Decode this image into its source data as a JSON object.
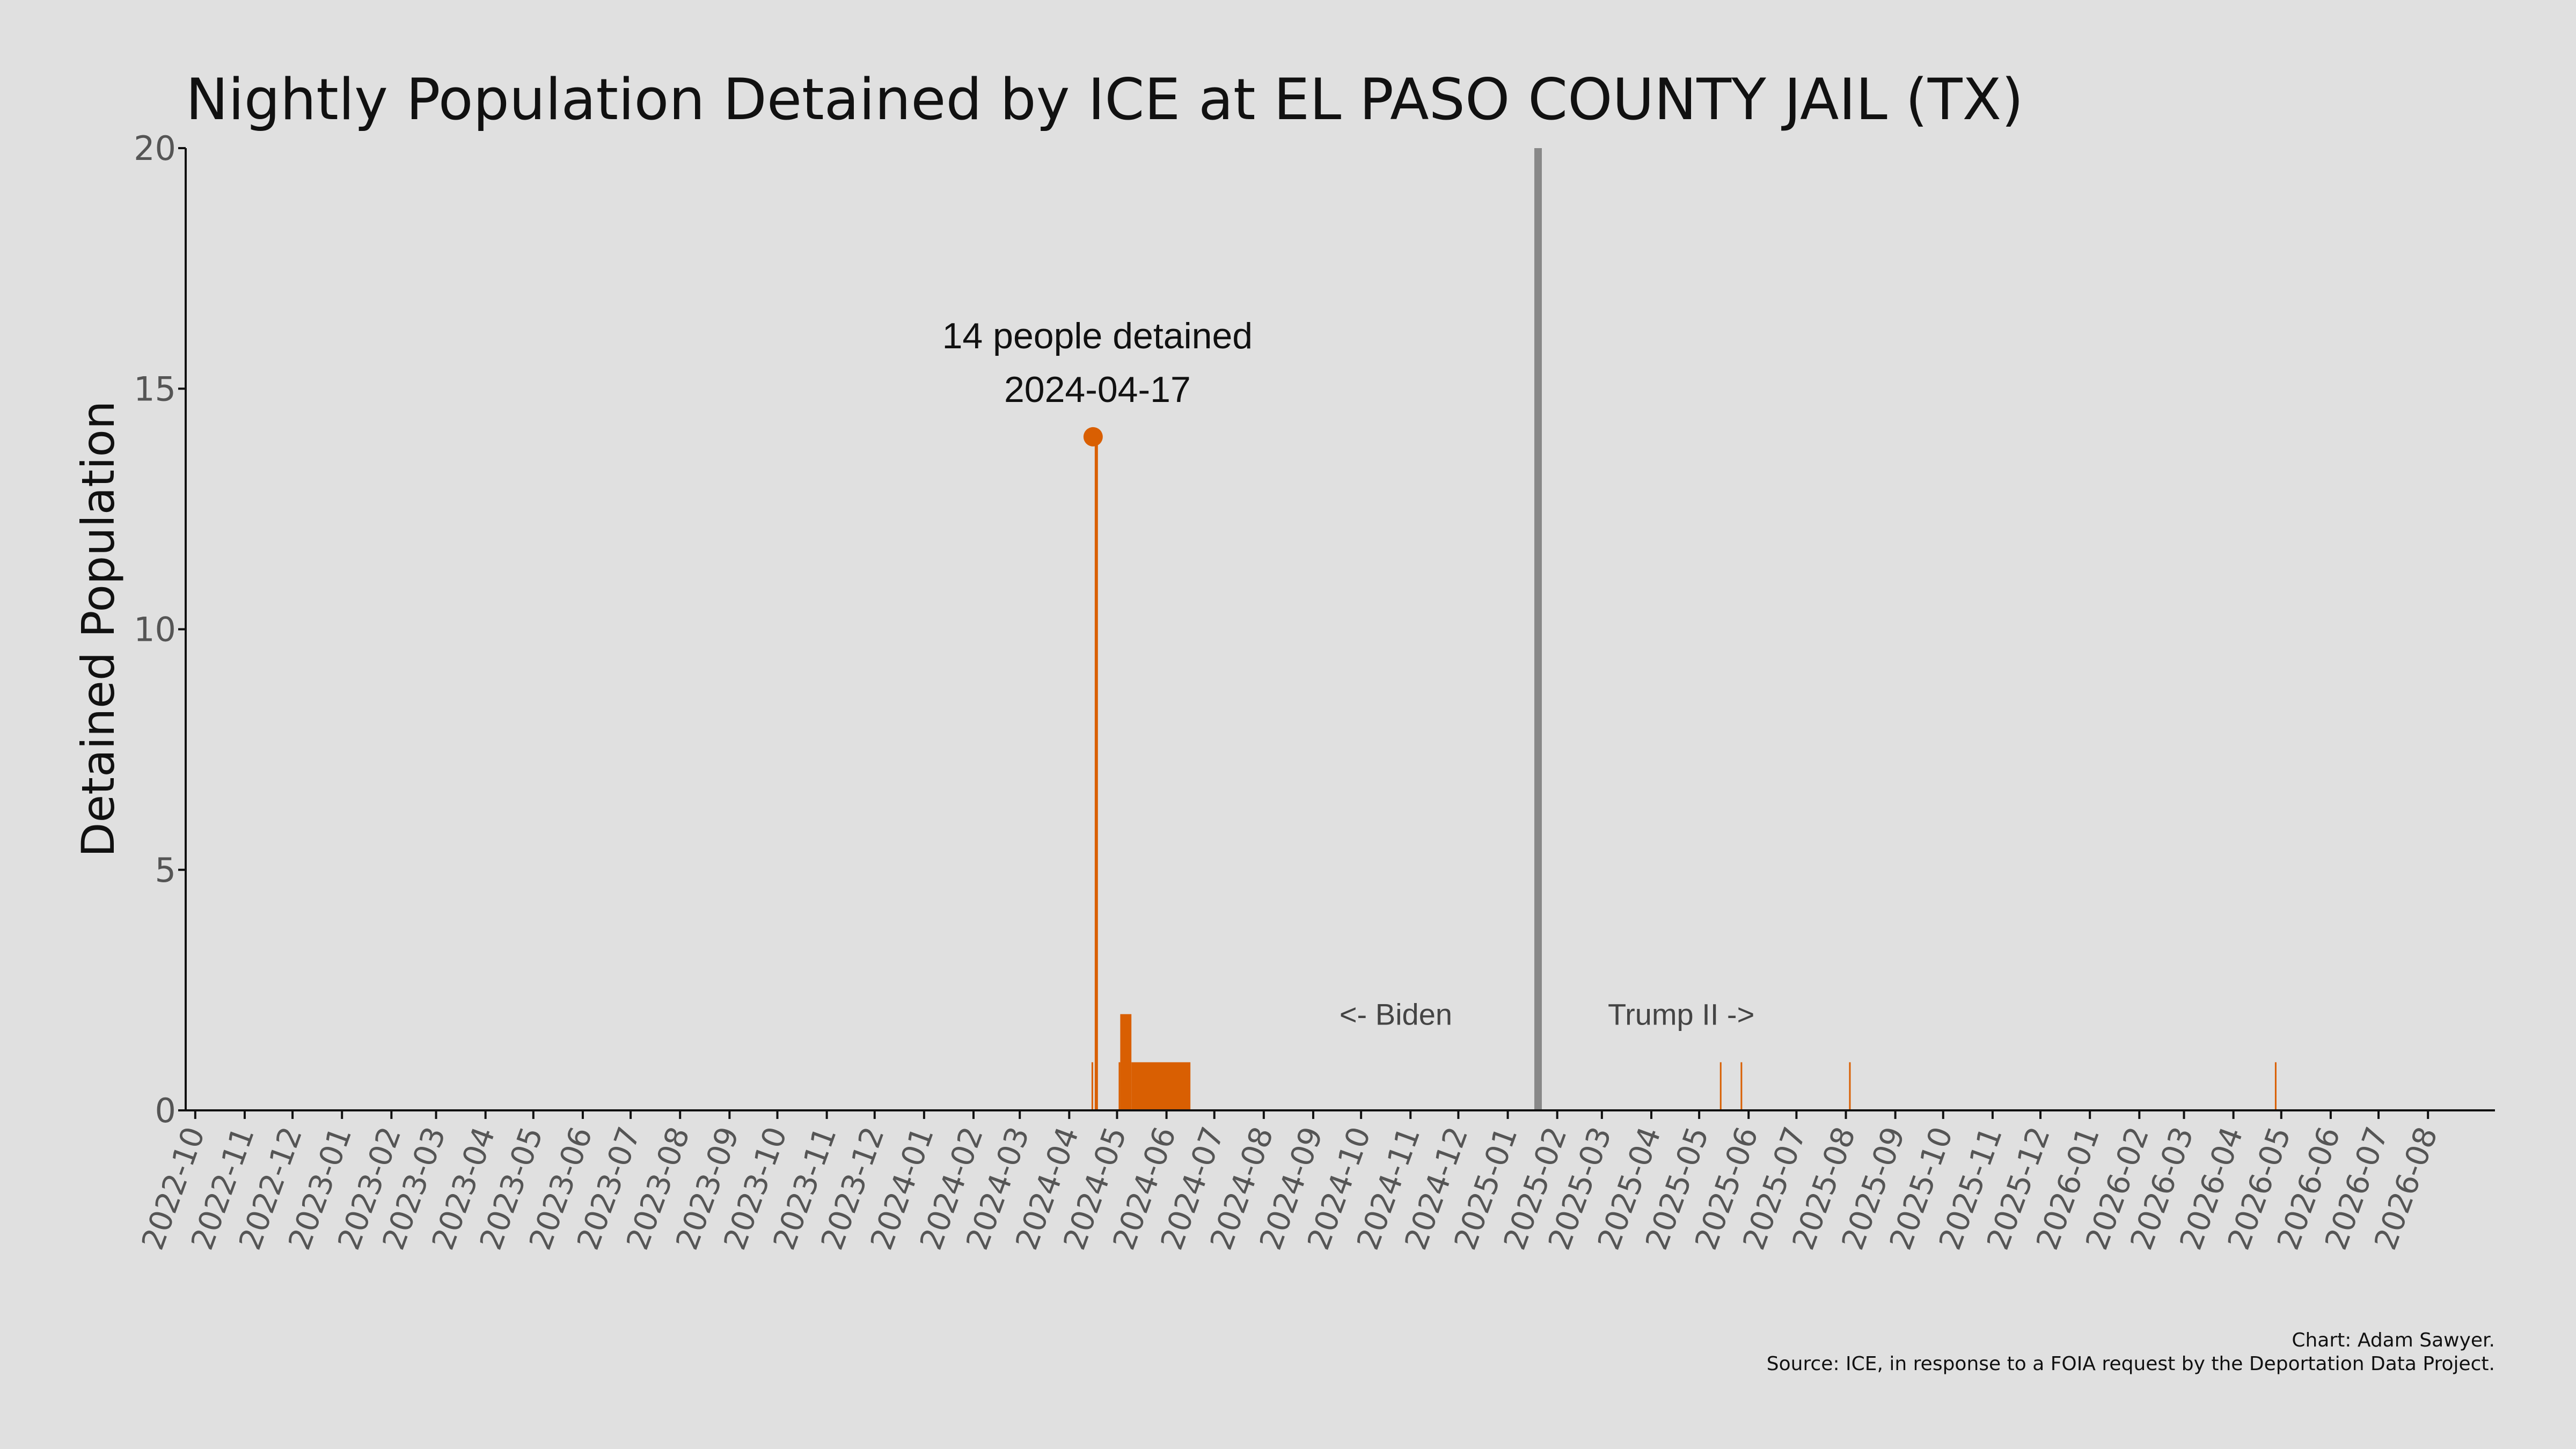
{
  "chart_data": {
    "type": "bar",
    "title": "Nightly Population Detained by ICE at EL PASO COUNTY JAIL (TX)",
    "xlabel": "",
    "ylabel": "Detained Population",
    "xlim": [
      "2022-09-25",
      "2026-09-12"
    ],
    "ylim": [
      0,
      20
    ],
    "yticks": [
      0,
      5,
      10,
      15,
      20
    ],
    "xticks": [
      "2022-10",
      "2022-11",
      "2022-12",
      "2023-01",
      "2023-02",
      "2023-03",
      "2023-04",
      "2023-05",
      "2023-06",
      "2023-07",
      "2023-08",
      "2023-09",
      "2023-10",
      "2023-11",
      "2023-12",
      "2024-01",
      "2024-02",
      "2024-03",
      "2024-04",
      "2024-05",
      "2024-06",
      "2024-07",
      "2024-08",
      "2024-09",
      "2024-10",
      "2024-11",
      "2024-12",
      "2025-01",
      "2025-02",
      "2025-03",
      "2025-04",
      "2025-05",
      "2025-06",
      "2025-07",
      "2025-08",
      "2025-09",
      "2025-10",
      "2025-11",
      "2025-12",
      "2026-01",
      "2026-02",
      "2026-03",
      "2026-04",
      "2026-05",
      "2026-06",
      "2026-07",
      "2026-08"
    ],
    "grid": false,
    "color": "#d95f02",
    "series": [
      {
        "values": [
          {
            "start": "2024-04-15",
            "end": "2024-04-16",
            "value": 1
          },
          {
            "start": "2024-04-17",
            "end": "2024-04-19",
            "value": 14
          },
          {
            "start": "2024-05-02",
            "end": "2024-05-03",
            "value": 1
          },
          {
            "start": "2024-05-03",
            "end": "2024-05-10",
            "value": 2
          },
          {
            "start": "2024-05-10",
            "end": "2024-06-16",
            "value": 1
          },
          {
            "start": "2025-05-14",
            "end": "2025-05-15",
            "value": 1
          },
          {
            "start": "2025-05-27",
            "end": "2025-05-28",
            "value": 1
          },
          {
            "start": "2025-08-03",
            "end": "2025-08-04",
            "value": 1
          },
          {
            "start": "2026-04-27",
            "end": "2026-04-28",
            "value": 1
          }
        ]
      }
    ],
    "highlight": {
      "date": "2024-04-17",
      "value": 14,
      "label_line1": "14 people detained",
      "label_line2": "2024-04-17"
    },
    "divider": {
      "date": "2025-01-20",
      "color": "#888888"
    },
    "era_labels": {
      "left": "<- Biden",
      "right": "Trump II ->"
    },
    "credit_line1": "Chart: Adam Sawyer.",
    "credit_line2": "Source: ICE, in response to a FOIA request by the Deportation Data Project."
  }
}
